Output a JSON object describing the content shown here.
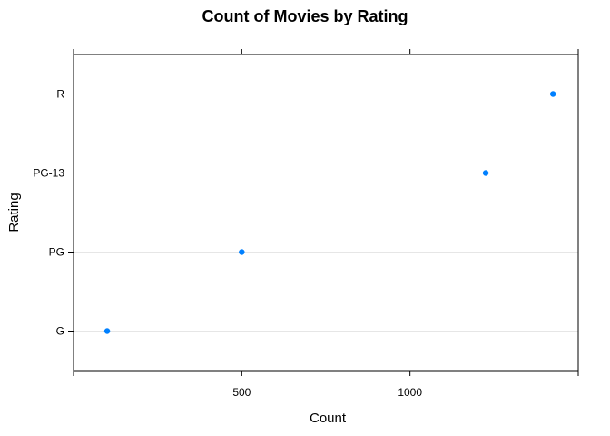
{
  "chart_data": {
    "type": "scatter",
    "style": "dotplot",
    "title": "Count of Movies by Rating",
    "xlabel": "Count",
    "ylabel": "Rating",
    "categories": [
      "G",
      "PG",
      "PG-13",
      "R"
    ],
    "values": [
      100,
      500,
      1225,
      1425
    ],
    "xlim": [
      0,
      1500
    ],
    "x_ticks": [
      500,
      1000
    ],
    "x_tick_labels": [
      "500",
      "1000"
    ],
    "grid": true,
    "point_color": "#0080ff",
    "grid_color": "#e6e6e6"
  }
}
